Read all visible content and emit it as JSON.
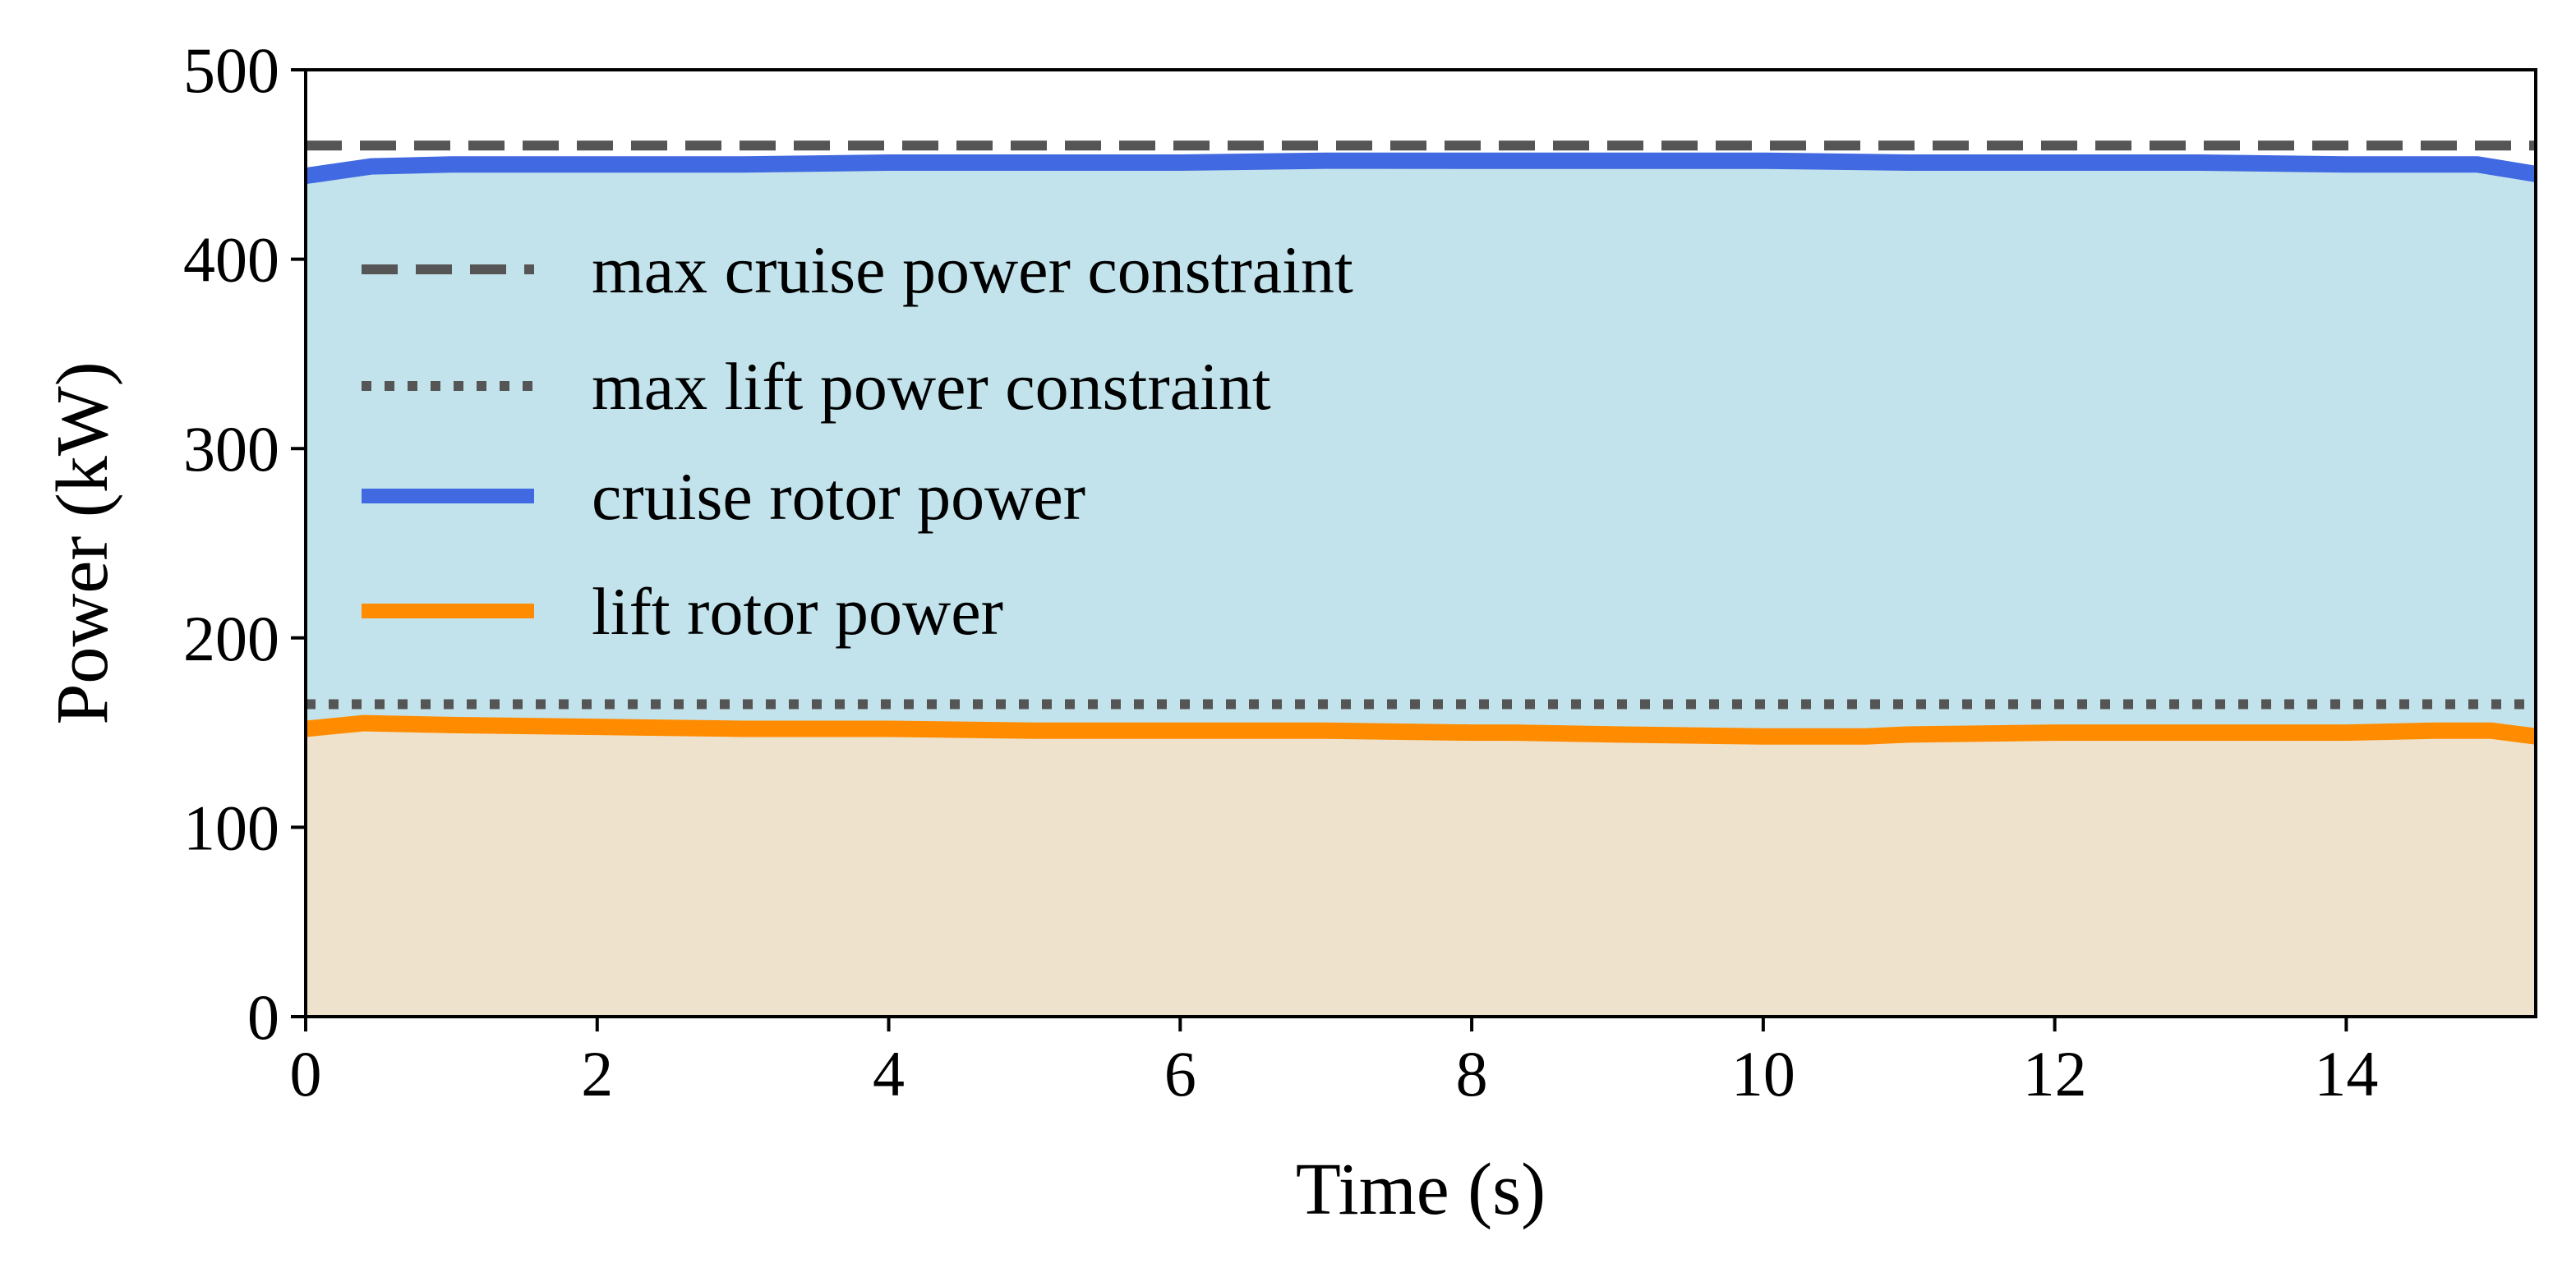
{
  "chart_data": {
    "type": "line",
    "title": "",
    "xlabel": "Time (s)",
    "ylabel": "Power (kW)",
    "xlim": [
      0,
      15.3
    ],
    "ylim": [
      0,
      500
    ],
    "xticks": [
      0,
      2,
      4,
      6,
      8,
      10,
      12,
      14
    ],
    "yticks": [
      0,
      100,
      200,
      300,
      400,
      500
    ],
    "grid": false,
    "legend_position": "upper-left",
    "constraints": [
      {
        "name": "max cruise power constraint",
        "value": 460,
        "style": "dashed",
        "color": "#555555"
      },
      {
        "name": "max lift power constraint",
        "value": 165,
        "style": "dotted",
        "color": "#555555"
      }
    ],
    "series": [
      {
        "name": "cruise rotor power",
        "color": "#4169e1",
        "fill": "#c2e3ec",
        "x": [
          0,
          0.45,
          1,
          2,
          3,
          4,
          5,
          6,
          7,
          8,
          9,
          10,
          11,
          12,
          13,
          14,
          14.9,
          15.3
        ],
        "y": [
          444,
          449,
          450,
          450,
          450,
          451,
          451,
          451,
          452,
          452,
          452,
          452,
          451,
          451,
          451,
          450,
          450,
          445
        ]
      },
      {
        "name": "lift rotor power",
        "color": "#ff8c00",
        "fill": "#efe2cd",
        "x": [
          0,
          0.4,
          1,
          2,
          3,
          4,
          5,
          6,
          7,
          8,
          8.3,
          9,
          10,
          10.7,
          11,
          12,
          13,
          14,
          14.6,
          15,
          15.3
        ],
        "y": [
          152,
          155,
          154,
          153,
          152,
          152,
          151,
          151,
          151,
          150,
          150,
          149,
          148,
          148,
          149,
          150,
          150,
          150,
          151,
          151,
          148
        ]
      }
    ]
  }
}
